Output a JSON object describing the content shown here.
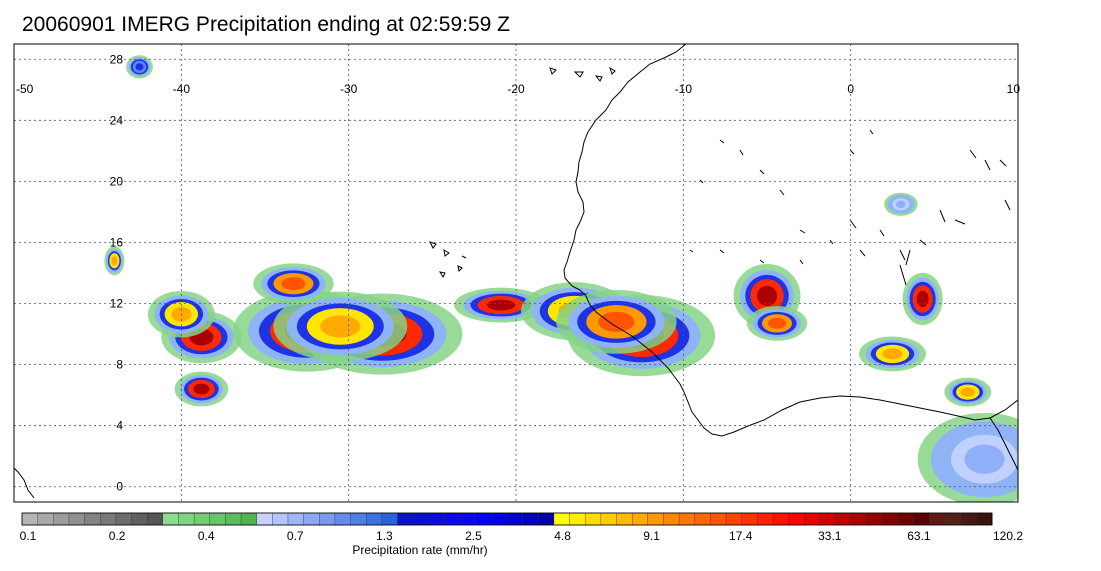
{
  "title": "20060901 IMERG Precipitation ending at 02:59:59 Z",
  "map": {
    "lon_range": [
      -50,
      10
    ],
    "lat_range": [
      -1,
      29
    ],
    "lon_ticks": [
      -50,
      -40,
      -30,
      -20,
      -10,
      0,
      10
    ],
    "lat_ticks": [
      0,
      4,
      8,
      12,
      16,
      20,
      24,
      28
    ],
    "grid": "dotted",
    "colors": {
      "coast": "#000000",
      "grid": "#555555",
      "frame": "#000000"
    }
  },
  "colorbar": {
    "label": "Precipitation rate (mm/hr)",
    "tick_labels": [
      "0.1",
      "0.2",
      "0.4",
      "0.7",
      "1.3",
      "2.5",
      "4.8",
      "9.1",
      "17.4",
      "33.1",
      "63.1",
      "120.2"
    ],
    "colors": [
      "#b4b4b4",
      "#a8a8a8",
      "#9c9c9c",
      "#909090",
      "#848484",
      "#787878",
      "#6c6c6c",
      "#606060",
      "#555555",
      "#8cdc8c",
      "#80d480",
      "#74cc74",
      "#68c468",
      "#5cbc5c",
      "#50b450",
      "#c8d2ff",
      "#b4c4fb",
      "#a0b6f7",
      "#8ca8f3",
      "#789aef",
      "#648ceb",
      "#507ee7",
      "#3c70e3",
      "#2862df",
      "#0a14c8",
      "#0a10d2",
      "#0a0cdc",
      "#0a08e6",
      "#0a04f0",
      "#0000fa",
      "#0000e6",
      "#0000d2",
      "#0000be",
      "#0000aa",
      "#ffff00",
      "#ffee00",
      "#ffdd00",
      "#ffcc00",
      "#ffbb00",
      "#ffaa00",
      "#ff9900",
      "#ff8800",
      "#ff7700",
      "#ff6600",
      "#ff5500",
      "#ff4400",
      "#ff3300",
      "#ff2200",
      "#ff1100",
      "#ff0000",
      "#e60000",
      "#d20000",
      "#be0000",
      "#aa0000",
      "#960000",
      "#820000",
      "#6e0000",
      "#5a0000",
      "#5e1a12",
      "#522014",
      "#461a10",
      "#3a140c"
    ]
  },
  "precip_cells": [
    {
      "lon": -32.5,
      "lat": 10.2,
      "rx": 2.2,
      "ry": 1.4,
      "level": "red"
    },
    {
      "lon": -28.0,
      "lat": 10.0,
      "rx": 2.4,
      "ry": 1.4,
      "level": "red"
    },
    {
      "lon": -30.5,
      "lat": 10.5,
      "rx": 2.0,
      "ry": 1.2,
      "level": "yellow"
    },
    {
      "lon": -38.8,
      "lat": 9.8,
      "rx": 1.2,
      "ry": 0.9,
      "level": "red"
    },
    {
      "lon": -40.0,
      "lat": 11.3,
      "rx": 1.0,
      "ry": 0.8,
      "level": "yellow"
    },
    {
      "lon": -33.3,
      "lat": 13.3,
      "rx": 1.2,
      "ry": 0.7,
      "level": "orange"
    },
    {
      "lon": -38.8,
      "lat": 6.4,
      "rx": 0.8,
      "ry": 0.6,
      "level": "red"
    },
    {
      "lon": -20.9,
      "lat": 11.9,
      "rx": 1.4,
      "ry": 0.6,
      "level": "red"
    },
    {
      "lon": -16.5,
      "lat": 11.5,
      "rx": 1.6,
      "ry": 1.0,
      "level": "yellow"
    },
    {
      "lon": -12.5,
      "lat": 9.9,
      "rx": 2.2,
      "ry": 1.4,
      "level": "red"
    },
    {
      "lon": -14.0,
      "lat": 10.8,
      "rx": 1.8,
      "ry": 1.1,
      "level": "orange"
    },
    {
      "lon": -5.0,
      "lat": 12.5,
      "rx": 1.0,
      "ry": 1.1,
      "level": "red"
    },
    {
      "lon": -4.4,
      "lat": 10.7,
      "rx": 0.9,
      "ry": 0.6,
      "level": "orange"
    },
    {
      "lon": 4.3,
      "lat": 12.3,
      "rx": 0.6,
      "ry": 0.9,
      "level": "red"
    },
    {
      "lon": 7.0,
      "lat": 6.2,
      "rx": 0.7,
      "ry": 0.5,
      "level": "yellow"
    },
    {
      "lon": 2.5,
      "lat": 8.7,
      "rx": 1.0,
      "ry": 0.6,
      "level": "yellow"
    },
    {
      "lon": -44.0,
      "lat": 14.8,
      "rx": 0.3,
      "ry": 0.5,
      "level": "yellow"
    },
    {
      "lon": -42.5,
      "lat": 27.5,
      "rx": 0.4,
      "ry": 0.4,
      "level": "blue"
    },
    {
      "lon": 8.0,
      "lat": 1.8,
      "rx": 2.0,
      "ry": 1.6,
      "level": "lightblue"
    },
    {
      "lon": 3.0,
      "lat": 18.5,
      "rx": 0.5,
      "ry": 0.4,
      "level": "lightblue"
    }
  ]
}
